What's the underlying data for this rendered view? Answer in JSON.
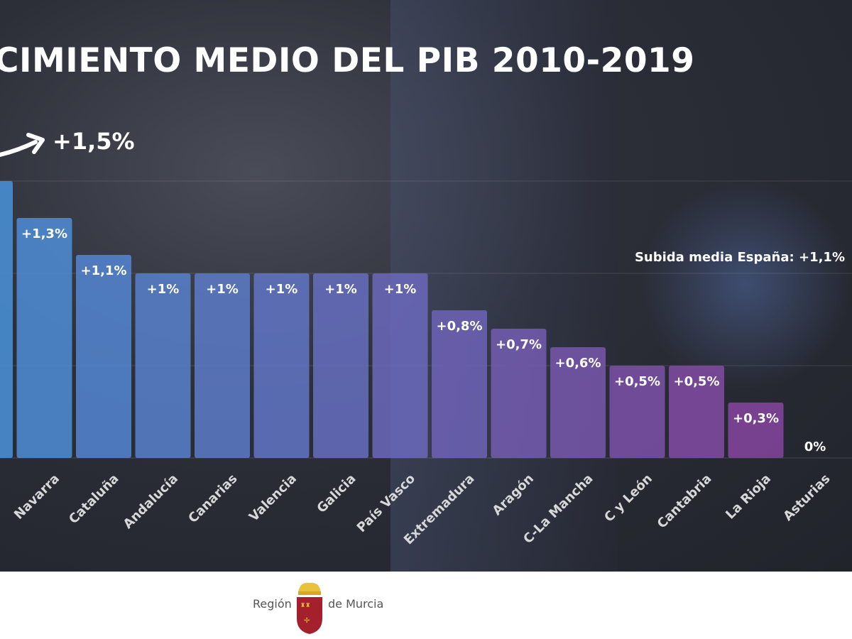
{
  "chart_data": {
    "type": "bar",
    "title": "CIMIENTO MEDIO DEL PIB 2010-2019",
    "highlight_label": "+1,5%",
    "reference_line": {
      "label": "Subida media España: +1,1%",
      "value": 1.1
    },
    "categories": [
      "",
      "Navarra",
      "Cataluña",
      "Andalucía",
      "Canarias",
      "Valencia",
      "Galicia",
      "País Vasco",
      "Extremadura",
      "Aragón",
      "C-La Mancha",
      "C y León",
      "Cantabria",
      "La Rioja",
      "Asturias"
    ],
    "values": [
      1.5,
      1.3,
      1.1,
      1.0,
      1.0,
      1.0,
      1.0,
      1.0,
      0.8,
      0.7,
      0.6,
      0.5,
      0.5,
      0.3,
      0.0
    ],
    "data_labels": [
      "",
      "+1,3%",
      "+1,1%",
      "+1%",
      "+1%",
      "+1%",
      "+1%",
      "+1%",
      "+0,8%",
      "+0,7%",
      "+0,6%",
      "+0,5%",
      "+0,5%",
      "+0,3%",
      "0%"
    ],
    "ylim": [
      0,
      1.5
    ],
    "grid": true,
    "color_start": "#4a93dc",
    "color_end": "#8b3f9b"
  },
  "footer": {
    "left": "Región",
    "right": "de Murcia"
  }
}
